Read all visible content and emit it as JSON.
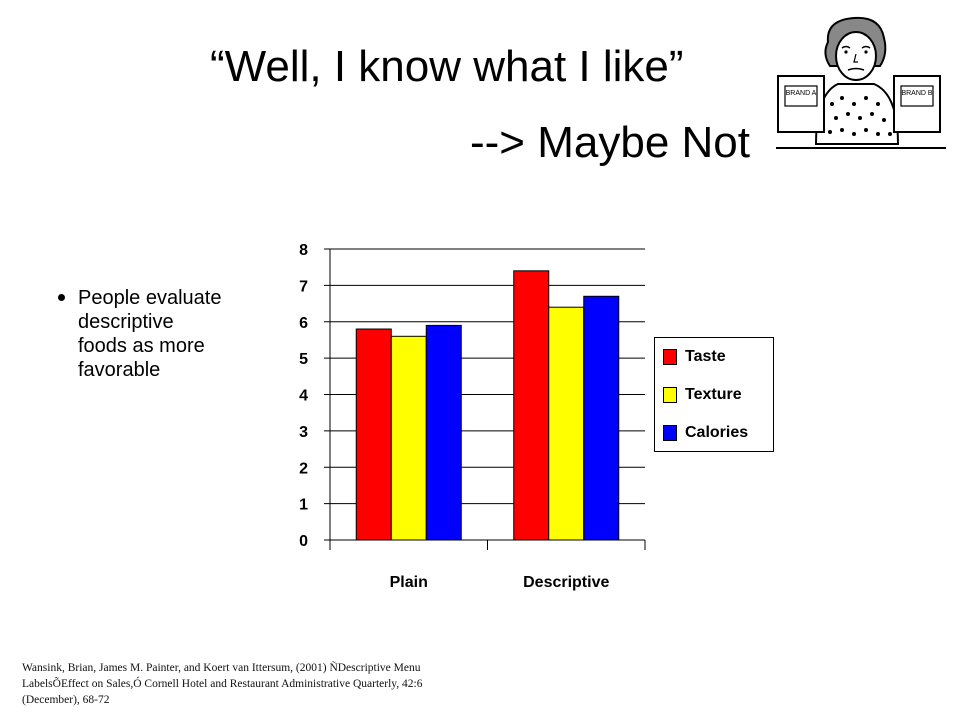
{
  "slide": {
    "title_line1": "“Well, I know what I like”",
    "title_line2": "--> Maybe Not",
    "bullet": "People evaluate descriptive foods as more favorable",
    "citation": "Wansink, Brian, James M. Painter, and Koert van Ittersum, (2001) ÑDescriptive Menu LabelsÕEffect on Sales,Ó Cornell Hotel and Restaurant Administrative Quarterly, 42:6 (December), 68-72",
    "cartoon_icon": "woman-comparing-brand-a-and-brand-b-icon",
    "cartoon_box_labels": [
      "BRAND A",
      "BRAND B"
    ]
  },
  "chart_data": {
    "type": "bar",
    "categories": [
      "Plain",
      "Descriptive"
    ],
    "series": [
      {
        "name": "Taste",
        "color": "#ff0000",
        "values": [
          5.8,
          7.4
        ]
      },
      {
        "name": "Texture",
        "color": "#ffff00",
        "values": [
          5.6,
          6.4
        ]
      },
      {
        "name": "Calories",
        "color": "#0000ff",
        "values": [
          5.9,
          6.7
        ]
      }
    ],
    "title": "",
    "xlabel": "",
    "ylabel": "",
    "ylim": [
      0,
      8
    ],
    "yticks": [
      "0",
      "1",
      "2",
      "3",
      "4",
      "5",
      "6",
      "7",
      "8"
    ],
    "grid": true,
    "legend_position": "right"
  }
}
